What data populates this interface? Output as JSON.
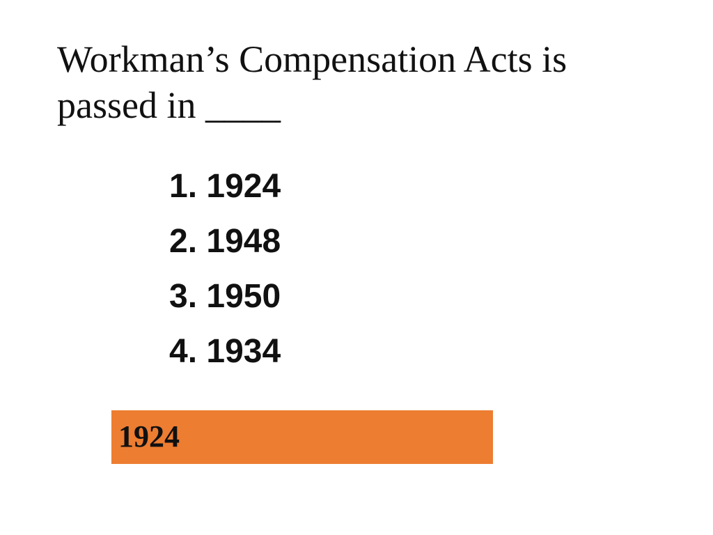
{
  "title": [
    "Workman’s Compensation Acts is",
    "passed in ____"
  ],
  "options": [
    "1. 1924",
    "2. 1948",
    "3. 1950",
    "4. 1934"
  ],
  "answer": "1924"
}
